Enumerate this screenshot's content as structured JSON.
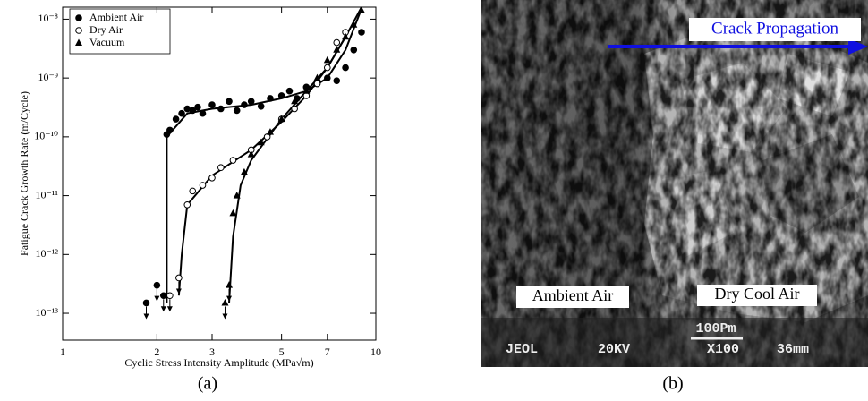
{
  "chart_data": {
    "type": "scatter",
    "xlabel": "Cyclic Stress Intensity Amplitude (MPa√m)",
    "ylabel": "Fatigue Crack Growth Rate (m/Cycle)",
    "xlim": [
      1,
      10
    ],
    "ylim": [
      3.5e-14,
      1.6e-08
    ],
    "xscale": "log",
    "yscale": "log",
    "xticks": [
      1,
      2,
      3,
      5,
      7,
      10
    ],
    "yticks": [
      {
        "value": 1e-13,
        "label": "10⁻¹³"
      },
      {
        "value": 1e-12,
        "label": "10⁻¹²"
      },
      {
        "value": 1e-11,
        "label": "10⁻¹¹"
      },
      {
        "value": 1e-10,
        "label": "10⁻¹⁰"
      },
      {
        "value": 1e-09,
        "label": "10⁻⁹"
      },
      {
        "value": 1e-08,
        "label": "10⁻⁸"
      }
    ],
    "legend": "upper left",
    "series": [
      {
        "name": "Ambient Air",
        "marker": "filled-circle",
        "color": "#000000",
        "x": [
          1.85,
          2.0,
          2.1,
          2.15,
          2.2,
          2.3,
          2.4,
          2.5,
          2.6,
          2.7,
          2.8,
          3.0,
          3.2,
          3.4,
          3.6,
          3.8,
          4.0,
          4.3,
          4.6,
          5.0,
          5.3,
          5.6,
          6.0,
          6.5,
          7.0,
          7.5,
          8.0,
          8.5,
          9.0
        ],
        "values": [
          1.5e-13,
          3e-13,
          2e-13,
          1.1e-10,
          1.3e-10,
          2e-10,
          2.5e-10,
          3e-10,
          2.8e-10,
          3.2e-10,
          2.5e-10,
          3.5e-10,
          3e-10,
          4e-10,
          2.8e-10,
          3.5e-10,
          4e-10,
          3.3e-10,
          4.5e-10,
          5e-10,
          6e-10,
          4.5e-10,
          7e-10,
          8e-10,
          1e-09,
          9e-10,
          1.5e-09,
          3e-09,
          6e-09
        ]
      },
      {
        "name": "Dry Air",
        "marker": "open-circle",
        "color": "#000000",
        "x": [
          2.2,
          2.35,
          2.5,
          2.6,
          2.8,
          3.0,
          3.2,
          3.5,
          4.0,
          4.5,
          5.0,
          5.5,
          6.0,
          6.5,
          7.0,
          7.5,
          8.0
        ],
        "values": [
          2e-13,
          4e-13,
          7e-12,
          1.2e-11,
          1.5e-11,
          2e-11,
          3e-11,
          4e-11,
          6e-11,
          1e-10,
          2e-10,
          3e-10,
          5e-10,
          8e-10,
          1.5e-09,
          4e-09,
          6e-09
        ]
      },
      {
        "name": "Vacuum",
        "marker": "triangle",
        "color": "#000000",
        "x": [
          3.3,
          3.4,
          3.5,
          3.6,
          3.8,
          4.0,
          4.3,
          4.6,
          5.0,
          5.5,
          6.0,
          6.5,
          7.0,
          7.5,
          8.0,
          8.5,
          9.0
        ],
        "values": [
          1.5e-13,
          3e-13,
          5e-12,
          1e-11,
          2.5e-11,
          5e-11,
          8e-11,
          1.2e-10,
          2e-10,
          4e-10,
          6e-10,
          1e-09,
          2e-09,
          3e-09,
          5e-09,
          8e-09,
          1.4e-08
        ]
      }
    ],
    "fits": [
      {
        "x": [
          2.15,
          2.15,
          2.5,
          3.0,
          4.0,
          5.0,
          6.0,
          7.0,
          8.0,
          9.0
        ],
        "values": [
          1.5e-13,
          1e-10,
          2.5e-10,
          3e-10,
          3.5e-10,
          4.5e-10,
          6e-10,
          1e-09,
          3e-09,
          1.5e-08
        ]
      },
      {
        "x": [
          2.35,
          2.4,
          2.5,
          3.0,
          4.0,
          5.0,
          6.0,
          7.0,
          8.0
        ],
        "values": [
          2e-13,
          1e-12,
          7e-12,
          2.2e-11,
          6e-11,
          1.8e-10,
          5e-10,
          1.5e-09,
          5e-09
        ]
      },
      {
        "x": [
          3.4,
          3.5,
          3.7,
          4.0,
          5.0,
          6.0,
          7.0,
          8.0,
          9.0
        ],
        "values": [
          1.5e-13,
          2e-12,
          1.5e-11,
          4e-11,
          2e-10,
          6e-10,
          1.5e-09,
          5e-09,
          1.6e-08
        ]
      }
    ]
  },
  "figure": {
    "captions": [
      "(a)",
      "(b)"
    ],
    "annotation": "Crack Propagation",
    "labels": [
      "Ambient Air",
      "Dry Cool Air"
    ],
    "scale": "100Pm",
    "info": [
      "JEOL",
      "20KV",
      "X100",
      "36mm"
    ]
  }
}
